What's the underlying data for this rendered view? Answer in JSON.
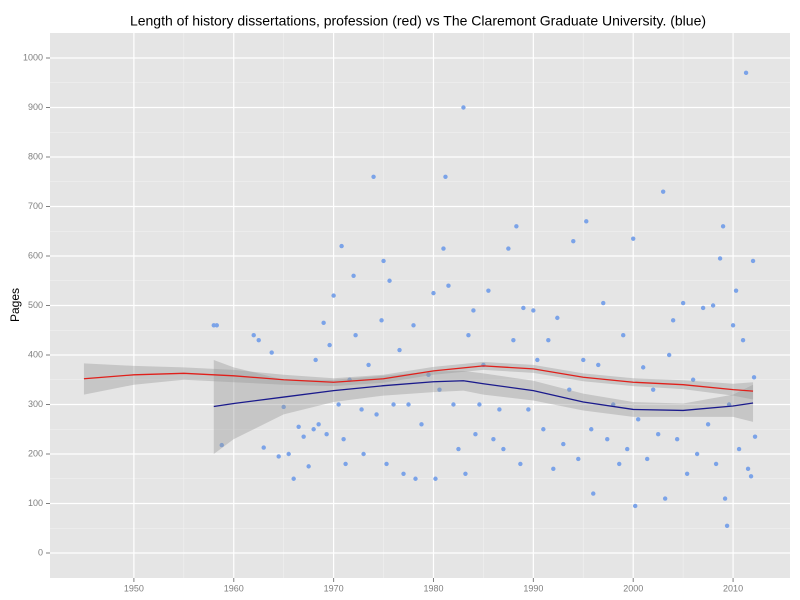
{
  "chart_data": {
    "type": "scatter",
    "title": "Length of history dissertations, profession (red) vs The Claremont Graduate University. (blue)",
    "y_label": "Pages",
    "xlim": [
      1941.6,
      2015.7
    ],
    "ylim": [
      -50.5,
      1050.5
    ],
    "xticks": [
      1950,
      1960,
      1970,
      1980,
      1990,
      2000,
      2010
    ],
    "yticks": [
      0,
      100,
      200,
      300,
      400,
      500,
      600,
      700,
      800,
      900,
      1000
    ],
    "grid": true,
    "point_color": "#7ba3e8",
    "x": [
      1958,
      1958.3,
      1958.8,
      1962,
      1962.5,
      1963,
      1963.8,
      1964.5,
      1965,
      1965.5,
      1966,
      1966.5,
      1967,
      1967.5,
      1968,
      1968.2,
      1968.5,
      1969,
      1969.3,
      1969.6,
      1970,
      1970.5,
      1970.8,
      1971,
      1971.2,
      1971.6,
      1972,
      1972.2,
      1972.8,
      1973,
      1973.5,
      1974,
      1974.3,
      1974.8,
      1975,
      1975.3,
      1975.6,
      1976,
      1976.6,
      1977,
      1977.5,
      1978,
      1978.2,
      1978.8,
      1979.5,
      1980,
      1980.2,
      1980.6,
      1981,
      1981.2,
      1981.5,
      1982,
      1982.5,
      1983,
      1983.2,
      1983.5,
      1984,
      1984.2,
      1984.6,
      1985,
      1985.5,
      1986,
      1986.6,
      1987,
      1987.5,
      1988,
      1988.3,
      1988.7,
      1989,
      1989.5,
      1990,
      1990.4,
      1991,
      1991.5,
      1992,
      1992.4,
      1993,
      1993.6,
      1994,
      1994.5,
      1995,
      1995.3,
      1995.8,
      1996,
      1996.5,
      1997,
      1997.4,
      1998,
      1998.6,
      1999,
      1999.4,
      2000,
      2000.2,
      2000.5,
      2001,
      2001.4,
      2002,
      2002.5,
      2003,
      2003.2,
      2003.6,
      2004,
      2004.4,
      2005,
      2005.4,
      2006,
      2006.4,
      2007,
      2007.5,
      2008,
      2008.3,
      2008.7,
      2009,
      2009.2,
      2009.4,
      2009.6,
      2010,
      2010.3,
      2010.6,
      2011,
      2011.3,
      2011.5,
      2011.8,
      2012,
      2012.1,
      2012.2
    ],
    "y": [
      460,
      460,
      218,
      440,
      430,
      213,
      405,
      195,
      295,
      200,
      150,
      255,
      235,
      175,
      250,
      390,
      260,
      465,
      240,
      420,
      520,
      300,
      620,
      230,
      180,
      350,
      560,
      440,
      290,
      200,
      380,
      760,
      280,
      470,
      590,
      180,
      550,
      300,
      410,
      160,
      300,
      460,
      150,
      260,
      360,
      525,
      150,
      330,
      615,
      760,
      540,
      300,
      210,
      900,
      160,
      440,
      490,
      240,
      300,
      380,
      530,
      230,
      290,
      210,
      615,
      430,
      660,
      180,
      495,
      290,
      490,
      390,
      250,
      430,
      170,
      475,
      220,
      330,
      630,
      190,
      390,
      670,
      250,
      120,
      380,
      505,
      230,
      300,
      180,
      440,
      210,
      635,
      95,
      270,
      375,
      190,
      330,
      240,
      730,
      110,
      400,
      470,
      230,
      505,
      160,
      350,
      200,
      495,
      260,
      500,
      180,
      595,
      660,
      110,
      55,
      300,
      460,
      530,
      210,
      430,
      970,
      170,
      155,
      590,
      355,
      235
    ],
    "series": [
      {
        "name": "profession",
        "color": "#e0201b",
        "x": [
          1945,
          1950,
          1955,
          1960,
          1965,
          1970,
          1975,
          1980,
          1985,
          1990,
          1995,
          2000,
          2005,
          2010,
          2012
        ],
        "values": [
          352,
          360,
          363,
          358,
          350,
          345,
          352,
          368,
          378,
          372,
          355,
          345,
          340,
          330,
          327
        ],
        "lower": [
          320,
          340,
          350,
          345,
          340,
          337,
          344,
          360,
          370,
          364,
          347,
          337,
          331,
          318,
          310
        ],
        "upper": [
          383,
          378,
          375,
          370,
          360,
          353,
          360,
          376,
          386,
          380,
          363,
          353,
          349,
          342,
          345
        ]
      },
      {
        "name": "The Claremont Graduate University",
        "color": "#1a1a8c",
        "x": [
          1958,
          1960,
          1965,
          1970,
          1975,
          1980,
          1983,
          1985,
          1990,
          1995,
          2000,
          2005,
          2010,
          2012
        ],
        "values": [
          296,
          302,
          315,
          328,
          338,
          346,
          348,
          342,
          328,
          305,
          290,
          288,
          297,
          303
        ],
        "lower": [
          200,
          230,
          280,
          305,
          318,
          325,
          328,
          320,
          308,
          288,
          275,
          275,
          275,
          265
        ],
        "upper": [
          390,
          375,
          350,
          350,
          358,
          367,
          368,
          363,
          348,
          322,
          305,
          302,
          320,
          340
        ]
      }
    ]
  }
}
